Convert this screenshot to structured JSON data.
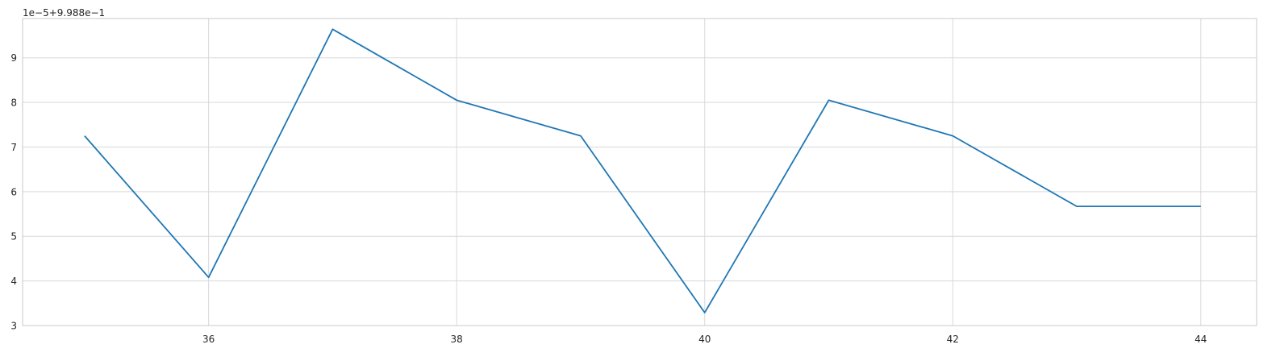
{
  "chart_data": {
    "type": "line",
    "title": "",
    "xlabel": "",
    "ylabel": "",
    "offset_text": "1e−5+9.988e−1",
    "x": [
      35,
      36,
      37,
      38,
      39,
      40,
      41,
      42,
      43,
      44
    ],
    "series": [
      {
        "values": [
          7.25,
          4.08,
          9.64,
          8.05,
          7.25,
          3.29,
          8.05,
          7.25,
          5.67,
          5.67
        ],
        "color": "#1f77b4"
      }
    ],
    "xlim": [
      34.5,
      44.45
    ],
    "ylim": [
      3.0,
      9.88
    ],
    "xticks": [
      36,
      38,
      40,
      42,
      44
    ],
    "yticks": [
      3,
      4,
      5,
      6,
      7,
      8,
      9
    ],
    "grid": true,
    "legend": "none",
    "colors": {
      "grid": "#d9d9d9",
      "spine": "#c8c8c8",
      "background": "#ffffff"
    }
  }
}
